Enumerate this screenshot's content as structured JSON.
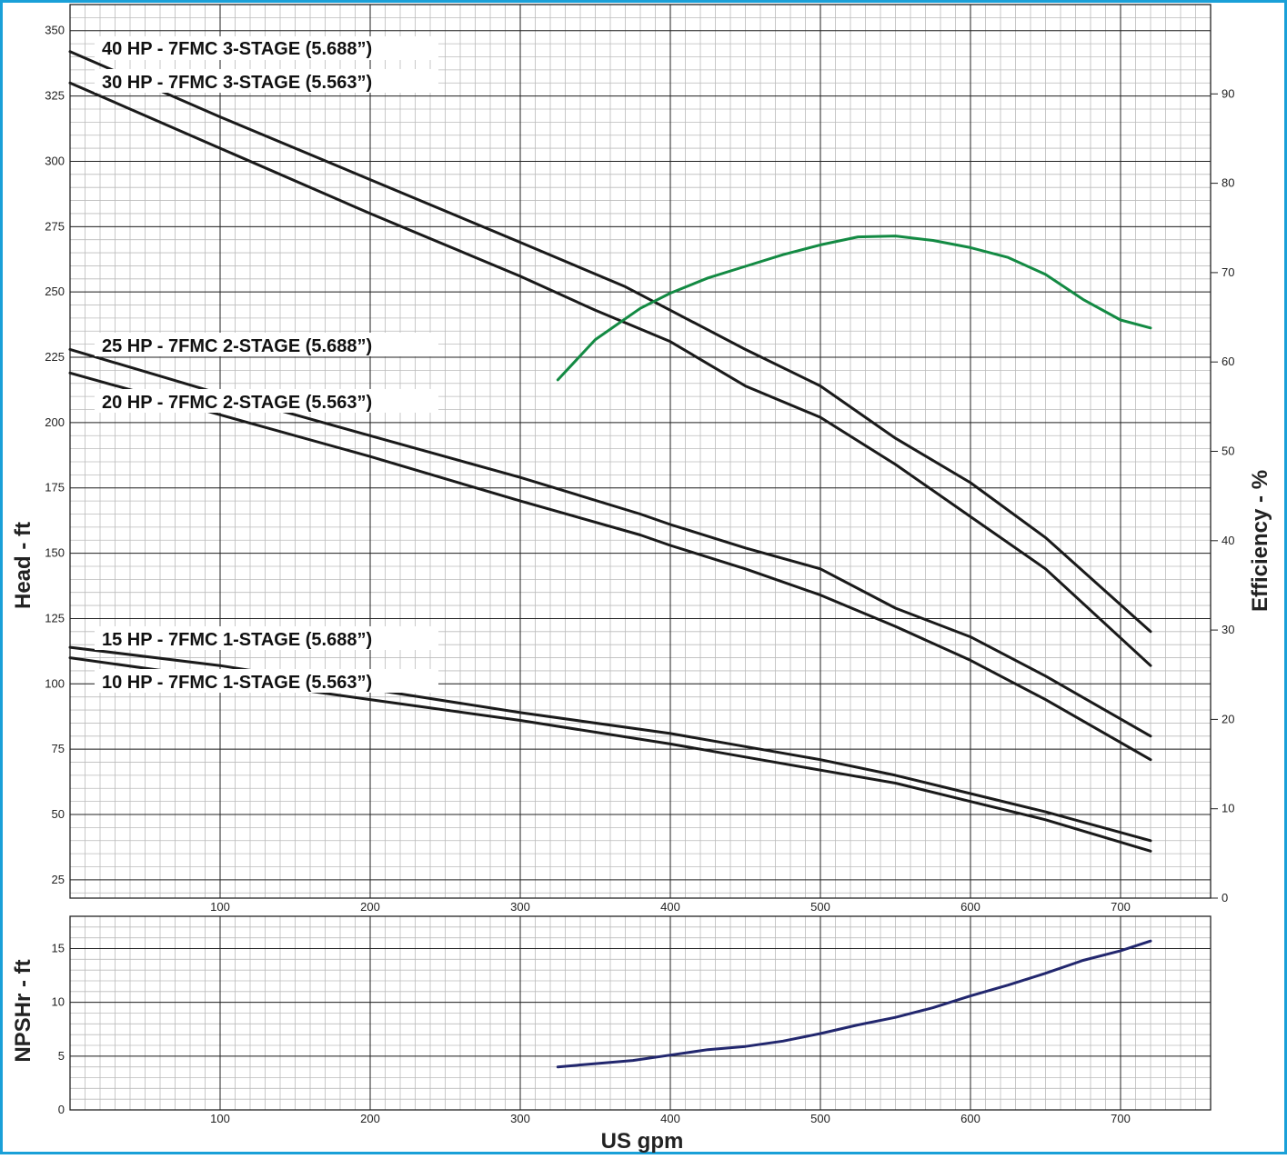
{
  "chart_data": [
    {
      "type": "line",
      "xlim": [
        0,
        760
      ],
      "ylim": [
        18,
        360
      ],
      "x_ticks": [
        100,
        200,
        300,
        400,
        500,
        600,
        700
      ],
      "x_tick_labels": [
        "100",
        "200",
        "300",
        "400",
        "500",
        "600",
        "700"
      ],
      "y_ticks": [
        25,
        50,
        75,
        100,
        125,
        150,
        175,
        200,
        225,
        250,
        275,
        300,
        325,
        350
      ],
      "y_tick_labels": [
        "25",
        "50",
        "75",
        "100",
        "125",
        "150",
        "175",
        "200",
        "225",
        "250",
        "275",
        "300",
        "325",
        "350"
      ],
      "ylabel": "Head - ft",
      "y2label": "Efficiency - %",
      "y2lim": [
        0,
        100
      ],
      "y2_ticks": [
        0,
        10,
        20,
        30,
        40,
        50,
        60,
        70,
        80,
        90
      ],
      "y2_tick_labels": [
        "0",
        "10",
        "20",
        "30",
        "40",
        "50",
        "60",
        "70",
        "80",
        "90"
      ],
      "grid": true,
      "series": [
        {
          "name": "40 HP - 7FMC 3-STAGE (5.688”)",
          "axis": "head",
          "color": "#1a1a1a",
          "x": [
            0,
            100,
            200,
            300,
            370,
            400,
            450,
            500,
            550,
            600,
            650,
            720
          ],
          "y": [
            342,
            317,
            293,
            269,
            252,
            243,
            228,
            214,
            194,
            177,
            156,
            120
          ]
        },
        {
          "name": "30 HP - 7FMC 3-STAGE (5.563”)",
          "axis": "head",
          "color": "#1a1a1a",
          "x": [
            0,
            100,
            200,
            300,
            350,
            400,
            450,
            500,
            550,
            600,
            650,
            720
          ],
          "y": [
            330,
            305,
            280,
            256,
            243,
            231,
            214,
            202,
            184,
            164,
            144,
            107
          ]
        },
        {
          "name": "25 HP - 7FMC 2-STAGE (5.688”)",
          "axis": "head",
          "color": "#1a1a1a",
          "x": [
            0,
            100,
            200,
            300,
            380,
            400,
            450,
            500,
            550,
            600,
            650,
            720
          ],
          "y": [
            228,
            211,
            195,
            179,
            165,
            161,
            152,
            144,
            129,
            118,
            103,
            80
          ]
        },
        {
          "name": "20 HP - 7FMC 2-STAGE (5.563”)",
          "axis": "head",
          "color": "#1a1a1a",
          "x": [
            0,
            100,
            200,
            300,
            380,
            400,
            450,
            500,
            550,
            600,
            650,
            720
          ],
          "y": [
            219,
            203,
            187,
            170,
            157,
            153,
            144,
            134,
            122,
            109,
            94,
            71
          ]
        },
        {
          "name": "15 HP - 7FMC 1-STAGE (5.688”)",
          "axis": "head",
          "color": "#1a1a1a",
          "x": [
            0,
            100,
            200,
            300,
            400,
            450,
            500,
            550,
            600,
            650,
            720
          ],
          "y": [
            114,
            107,
            98,
            89,
            81,
            76,
            71,
            65,
            58,
            51,
            40
          ]
        },
        {
          "name": "10 HP - 7FMC 1-STAGE (5.563”)",
          "axis": "head",
          "color": "#1a1a1a",
          "x": [
            0,
            100,
            200,
            300,
            400,
            450,
            500,
            550,
            600,
            650,
            720
          ],
          "y": [
            110,
            102,
            94,
            86,
            77,
            72,
            67,
            62,
            55,
            48,
            36
          ]
        },
        {
          "name": "",
          "axis": "efficiency",
          "color": "#138a43",
          "x": [
            325,
            350,
            380,
            400,
            425,
            450,
            475,
            500,
            525,
            550,
            575,
            600,
            625,
            650,
            675,
            700,
            720
          ],
          "y": [
            58,
            62.5,
            66,
            67.7,
            69.4,
            70.7,
            72,
            73.1,
            74,
            74.1,
            73.6,
            72.8,
            71.7,
            69.8,
            67,
            64.7,
            63.8
          ]
        }
      ]
    },
    {
      "type": "line",
      "xlim": [
        0,
        760
      ],
      "ylim": [
        0,
        18
      ],
      "x_ticks": [
        100,
        200,
        300,
        400,
        500,
        600,
        700
      ],
      "x_tick_labels": [
        "100",
        "200",
        "300",
        "400",
        "500",
        "600",
        "700"
      ],
      "y_ticks": [
        0,
        5,
        10,
        15
      ],
      "y_tick_labels": [
        "0",
        "5",
        "10",
        "15"
      ],
      "xlabel": "US gpm",
      "ylabel": "NPSHr - ft",
      "grid": true,
      "series": [
        {
          "name": "",
          "color": "#22276e",
          "x": [
            325,
            350,
            375,
            400,
            425,
            450,
            475,
            500,
            525,
            550,
            575,
            600,
            625,
            650,
            675,
            700,
            720
          ],
          "y": [
            4.0,
            4.3,
            4.6,
            5.1,
            5.6,
            5.9,
            6.4,
            7.1,
            7.9,
            8.6,
            9.5,
            10.6,
            11.6,
            12.7,
            13.9,
            14.8,
            15.7
          ]
        }
      ]
    }
  ],
  "labels": {
    "hp40": "40 HP - 7FMC 3-STAGE (5.688”)",
    "hp30": "30 HP - 7FMC 3-STAGE (5.563”)",
    "hp25": "25 HP - 7FMC 2-STAGE (5.688”)",
    "hp20": "20 HP - 7FMC 2-STAGE (5.563”)",
    "hp15": "15 HP - 7FMC 1-STAGE (5.688”)",
    "hp10": "10 HP - 7FMC 1-STAGE (5.563”)"
  },
  "colors": {
    "frame_border": "#1aa0d8",
    "head_curve": "#1a1a1a",
    "efficiency_curve": "#138a43",
    "npshr_curve": "#22276e",
    "major_grid": "#222222",
    "minor_grid": "#bbbbbb"
  }
}
